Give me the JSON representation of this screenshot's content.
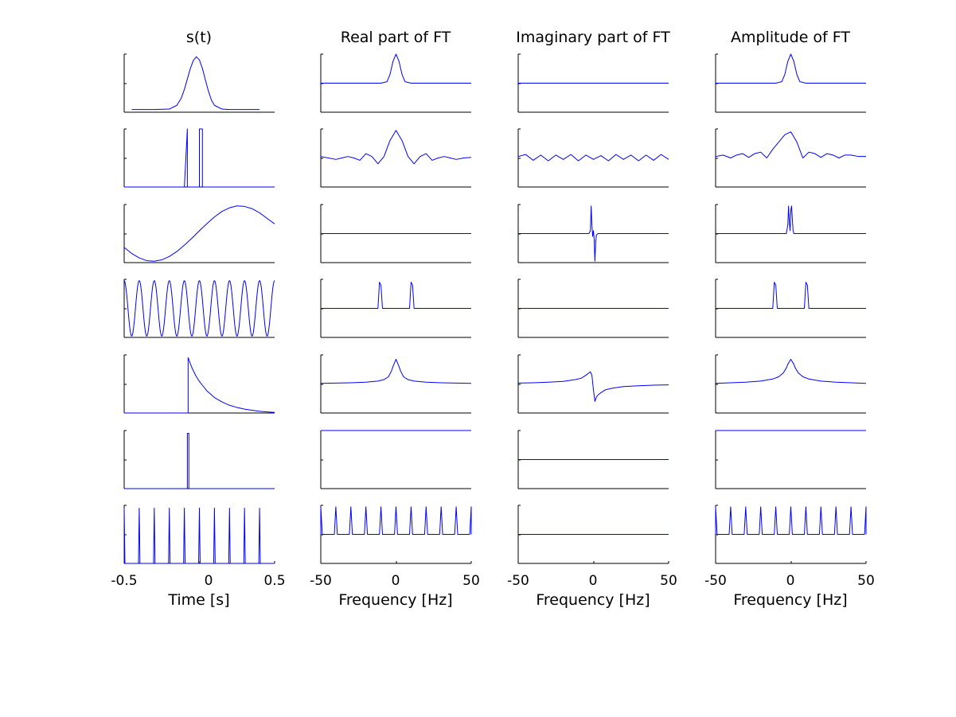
{
  "chart_data": {
    "type": "line",
    "layout": "grid of 7 rows x 4 columns of small line plots",
    "grid": false,
    "legend": "none",
    "line_color": "#0000ff",
    "columns": [
      {
        "id": "signal",
        "title": "s(t)",
        "xlabel": "Time [s]",
        "xlim": [
          -0.5,
          0.5
        ],
        "xticks": [
          "-0.5",
          "0",
          "0.5"
        ]
      },
      {
        "id": "real",
        "title": "Real part of FT",
        "xlabel": "Frequency [Hz]",
        "xlim": [
          -50,
          50
        ],
        "xticks": [
          "-50",
          "0",
          "50"
        ]
      },
      {
        "id": "imag",
        "title": "Imaginary part of FT",
        "xlabel": "Frequency [Hz]",
        "xlim": [
          -50,
          50
        ],
        "xticks": [
          "-50",
          "0",
          "50"
        ]
      },
      {
        "id": "amp",
        "title": "Amplitude of FT",
        "xlabel": "Frequency [Hz]",
        "xlim": [
          -50,
          50
        ],
        "xticks": [
          "-50",
          "0",
          "50"
        ]
      }
    ],
    "rows": [
      {
        "signal": {
          "x": [
            -0.5,
            -0.45,
            -0.4,
            -0.3,
            -0.2,
            -0.15,
            -0.12,
            -0.1,
            -0.08,
            -0.06,
            -0.04,
            -0.02,
            0.0,
            0.02,
            0.04,
            0.06,
            0.08,
            0.1,
            0.15,
            0.2,
            0.3,
            0.4,
            0.5
          ],
          "y": [
            null,
            0.0,
            0.0,
            0.0,
            0.01,
            0.08,
            0.22,
            0.38,
            0.58,
            0.78,
            0.93,
            1.0,
            0.94,
            0.78,
            0.56,
            0.35,
            0.18,
            0.08,
            0.01,
            0.0,
            0.0,
            0.0,
            null
          ],
          "ylim": [
            -0.05,
            1.05
          ]
        },
        "real": {
          "x": [
            -50,
            -10,
            -6,
            -4,
            -2,
            0,
            2,
            4,
            6,
            10,
            50
          ],
          "y": [
            0,
            0,
            0.05,
            0.3,
            0.75,
            1.0,
            0.75,
            0.3,
            0.05,
            0,
            0
          ],
          "ylim": [
            -1,
            1
          ]
        },
        "imag": {
          "x": [
            -50,
            50
          ],
          "y": [
            0,
            0
          ],
          "ylim": [
            -1,
            1
          ]
        },
        "amp": {
          "x": [
            -50,
            -10,
            -6,
            -4,
            -2,
            0,
            2,
            4,
            6,
            10,
            50
          ],
          "y": [
            0,
            0,
            0.05,
            0.3,
            0.75,
            1.0,
            0.75,
            0.3,
            0.05,
            0,
            0
          ],
          "ylim": [
            -1,
            1
          ]
        }
      },
      {
        "signal": {
          "x": [
            -0.5,
            -0.1,
            -0.1,
            -0.08,
            -0.08,
            -0.06,
            -0.06,
            0.0,
            0.0,
            0.02,
            0.02,
            0.5
          ],
          "y": [
            0,
            0,
            0,
            1.05,
            0,
            0,
            0,
            0,
            1.05,
            1.05,
            0,
            0
          ],
          "ylim": [
            0,
            1
          ]
        },
        "real": {
          "x": [
            -50,
            -45,
            -40,
            -36,
            -32,
            -28,
            -24,
            -20,
            -16,
            -12,
            -8,
            -4,
            0,
            4,
            8,
            12,
            16,
            20,
            24,
            28,
            32,
            36,
            40,
            45,
            50
          ],
          "y": [
            0.05,
            0.0,
            -0.05,
            0.0,
            0.05,
            0.0,
            -0.08,
            0.15,
            0.05,
            -0.2,
            0.05,
            0.6,
            0.95,
            0.6,
            0.05,
            -0.2,
            0.05,
            0.15,
            -0.08,
            0.0,
            0.05,
            0.0,
            -0.05,
            0.0,
            0.02
          ],
          "ylim": [
            -1,
            1
          ]
        },
        "imag": {
          "x": [
            -50,
            -45,
            -40,
            -35,
            -30,
            -25,
            -20,
            -15,
            -10,
            -5,
            0,
            5,
            10,
            15,
            20,
            25,
            30,
            35,
            40,
            45,
            50
          ],
          "y": [
            0.05,
            0.12,
            -0.08,
            0.1,
            -0.1,
            0.1,
            -0.05,
            0.12,
            -0.1,
            0.1,
            -0.05,
            0.08,
            -0.1,
            0.12,
            -0.05,
            0.1,
            -0.1,
            0.1,
            -0.08,
            0.12,
            -0.05
          ],
          "ylim": [
            -1,
            1
          ]
        },
        "amp": {
          "x": [
            -50,
            -45,
            -40,
            -36,
            -32,
            -28,
            -24,
            -20,
            -16,
            -12,
            -8,
            -4,
            0,
            4,
            8,
            12,
            16,
            20,
            24,
            28,
            32,
            36,
            40,
            45,
            50
          ],
          "y": [
            0.05,
            0.1,
            0.0,
            0.1,
            0.15,
            0.02,
            0.15,
            0.2,
            0.0,
            0.3,
            0.55,
            0.8,
            0.9,
            0.55,
            0.0,
            0.2,
            0.15,
            0.02,
            0.15,
            0.1,
            0.0,
            0.1,
            0.1,
            0.05,
            0.05
          ],
          "ylim": [
            -1,
            1
          ]
        }
      },
      {
        "signal": {
          "x": [
            -0.5,
            -0.45,
            -0.4,
            -0.35,
            -0.3,
            -0.25,
            -0.2,
            -0.15,
            -0.1,
            -0.05,
            0.0,
            0.05,
            0.1,
            0.15,
            0.2,
            0.25,
            0.3,
            0.35,
            0.4,
            0.45,
            0.5
          ],
          "y": [
            -0.5,
            -0.72,
            -0.88,
            -0.98,
            -1.0,
            -0.95,
            -0.83,
            -0.65,
            -0.42,
            -0.17,
            0.1,
            0.36,
            0.6,
            0.8,
            0.93,
            1.0,
            0.98,
            0.9,
            0.75,
            0.55,
            0.35
          ],
          "ylim": [
            -1.05,
            1.05
          ]
        },
        "real": {
          "x": [
            -50,
            50
          ],
          "y": [
            0,
            0
          ],
          "ylim": [
            -1,
            1
          ]
        },
        "imag": {
          "x": [
            -50,
            -3,
            -2,
            -1.5,
            -1,
            -0.5,
            0,
            0.5,
            1,
            1.5,
            2,
            3,
            50
          ],
          "y": [
            0,
            0,
            0.1,
            0.95,
            0.3,
            -0.1,
            0.1,
            -0.2,
            -0.95,
            -0.3,
            -0.05,
            0,
            0
          ],
          "ylim": [
            -1,
            1
          ]
        },
        "amp": {
          "x": [
            -50,
            -3,
            -2,
            -1.5,
            -1,
            -0.5,
            0,
            0.5,
            1,
            1.5,
            2,
            3,
            50
          ],
          "y": [
            0,
            0,
            0.3,
            0.95,
            0.4,
            0.1,
            0.8,
            0.95,
            0.5,
            0.1,
            0,
            0,
            0
          ],
          "ylim": [
            -1,
            1
          ]
        }
      },
      {
        "signal": {
          "frequency_hz": 10,
          "phase_cycles": 0,
          "ylim": [
            -1.05,
            1.05
          ]
        },
        "real": {
          "x": [
            -50,
            -13,
            -12,
            -11,
            -10,
            -9,
            -8,
            8,
            9,
            10,
            11,
            12,
            13,
            50
          ],
          "y": [
            0,
            0,
            0,
            0.9,
            0.8,
            0,
            0,
            0,
            0,
            0.9,
            0.8,
            0,
            0,
            0
          ],
          "ylim": [
            -1,
            1
          ]
        },
        "imag": {
          "x": [
            -50,
            50
          ],
          "y": [
            0,
            0
          ],
          "ylim": [
            -1,
            1
          ]
        },
        "amp": {
          "x": [
            -50,
            -13,
            -12,
            -11,
            -10,
            -9,
            -8,
            8,
            9,
            10,
            11,
            12,
            13,
            50
          ],
          "y": [
            0,
            0,
            0,
            0.9,
            0.8,
            0,
            0,
            0,
            0,
            0.9,
            0.8,
            0,
            0,
            0
          ],
          "ylim": [
            -1,
            1
          ]
        }
      },
      {
        "signal": {
          "x": [
            -0.5,
            -0.075,
            -0.075,
            -0.05,
            -0.025,
            0.0,
            0.05,
            0.1,
            0.15,
            0.2,
            0.25,
            0.3,
            0.35,
            0.4,
            0.45,
            0.5
          ],
          "y": [
            0,
            0,
            1.0,
            0.82,
            0.68,
            0.57,
            0.4,
            0.28,
            0.2,
            0.14,
            0.1,
            0.07,
            0.05,
            0.03,
            0.02,
            0.01
          ],
          "ylim": [
            0,
            1.05
          ]
        },
        "real": {
          "x": [
            -50,
            -40,
            -30,
            -20,
            -12,
            -8,
            -5,
            -3,
            -2,
            0,
            2,
            3,
            5,
            8,
            12,
            20,
            30,
            40,
            50
          ],
          "y": [
            0.02,
            0.03,
            0.04,
            0.06,
            0.1,
            0.15,
            0.25,
            0.45,
            0.6,
            0.85,
            0.6,
            0.45,
            0.25,
            0.15,
            0.1,
            0.06,
            0.04,
            0.03,
            0.02
          ],
          "ylim": [
            -1,
            1
          ]
        },
        "imag": {
          "x": [
            -50,
            -40,
            -30,
            -20,
            -12,
            -8,
            -5,
            -3,
            -2,
            -1,
            0,
            1,
            2,
            3,
            5,
            8,
            12,
            20,
            30,
            40,
            50
          ],
          "y": [
            0.03,
            0.04,
            0.06,
            0.09,
            0.15,
            0.2,
            0.3,
            0.38,
            0.42,
            0.3,
            -0.2,
            -0.6,
            -0.45,
            -0.38,
            -0.3,
            -0.2,
            -0.15,
            -0.09,
            -0.06,
            -0.04,
            -0.03
          ],
          "ylim": [
            -1,
            1
          ]
        },
        "amp": {
          "x": [
            -50,
            -40,
            -30,
            -20,
            -12,
            -8,
            -5,
            -3,
            -2,
            0,
            2,
            3,
            5,
            8,
            12,
            20,
            30,
            40,
            50
          ],
          "y": [
            0.02,
            0.04,
            0.06,
            0.1,
            0.17,
            0.25,
            0.38,
            0.55,
            0.68,
            0.85,
            0.68,
            0.55,
            0.38,
            0.25,
            0.17,
            0.1,
            0.06,
            0.04,
            0.02
          ],
          "ylim": [
            -1,
            1
          ]
        }
      },
      {
        "signal": {
          "x": [
            -0.5,
            -0.08,
            -0.08,
            -0.07,
            -0.07,
            0.5
          ],
          "y": [
            0,
            0,
            1.0,
            1.0,
            0,
            0
          ],
          "ylim": [
            0,
            1.05
          ]
        },
        "real": {
          "x": [
            -50,
            50
          ],
          "y": [
            1,
            1
          ],
          "ylim": [
            -1,
            1
          ]
        },
        "imag": {
          "x": [
            -50,
            50
          ],
          "y": [
            0,
            0
          ],
          "ylim": [
            -1,
            1
          ]
        },
        "amp": {
          "x": [
            -50,
            50
          ],
          "y": [
            1,
            1
          ],
          "ylim": [
            -1,
            1
          ]
        }
      },
      {
        "signal": {
          "spikes": [
            -0.5,
            -0.4,
            -0.3,
            -0.2,
            -0.1,
            0.0,
            0.1,
            0.2,
            0.3,
            0.4
          ],
          "spike_width": 0.01,
          "ylim": [
            0,
            1.05
          ]
        },
        "real": {
          "spikes": [
            -50,
            -40,
            -30,
            -20,
            -10,
            0,
            10,
            20,
            30,
            40,
            50
          ],
          "spike_width": 2,
          "height": 0.95,
          "ylim": [
            -1,
            1
          ]
        },
        "imag": {
          "x": [
            -50,
            50
          ],
          "y": [
            0,
            0
          ],
          "ylim": [
            -1,
            1
          ]
        },
        "amp": {
          "spikes": [
            -50,
            -40,
            -30,
            -20,
            -10,
            0,
            10,
            20,
            30,
            40,
            50
          ],
          "spike_width": 2,
          "height": 0.95,
          "ylim": [
            -1,
            1
          ]
        }
      }
    ]
  }
}
